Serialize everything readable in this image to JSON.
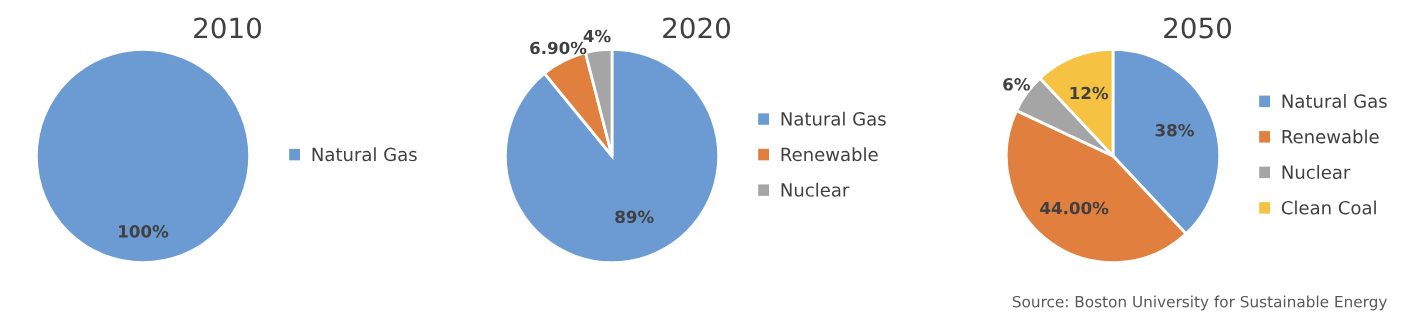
{
  "chart_data": [
    {
      "type": "pie",
      "title": "2010",
      "categories": [
        "Natural Gas"
      ],
      "values": [
        100
      ],
      "colors": [
        "#6b9bd2"
      ],
      "value_labels": [
        "100%"
      ],
      "legend": "right"
    },
    {
      "type": "pie",
      "title": "2020",
      "categories": [
        "Natural Gas",
        "Renewable",
        "Nuclear"
      ],
      "values": [
        89,
        6.9,
        4
      ],
      "colors": [
        "#6b9bd2",
        "#e07f3e",
        "#a5a5a5"
      ],
      "value_labels": [
        "89%",
        "6.90%",
        "4%"
      ],
      "legend": "right"
    },
    {
      "type": "pie",
      "title": "2050",
      "categories": [
        "Natural Gas",
        "Renewable",
        "Nuclear",
        "Clean Coal"
      ],
      "values": [
        38,
        44,
        6,
        12
      ],
      "colors": [
        "#6b9bd2",
        "#e07f3e",
        "#a5a5a5",
        "#f5c242"
      ],
      "value_labels": [
        "38%",
        "44.00%",
        "6%",
        "12%"
      ],
      "legend": "right",
      "annotations": [
        "Source: Boston University for Sustainable Energy"
      ]
    }
  ]
}
